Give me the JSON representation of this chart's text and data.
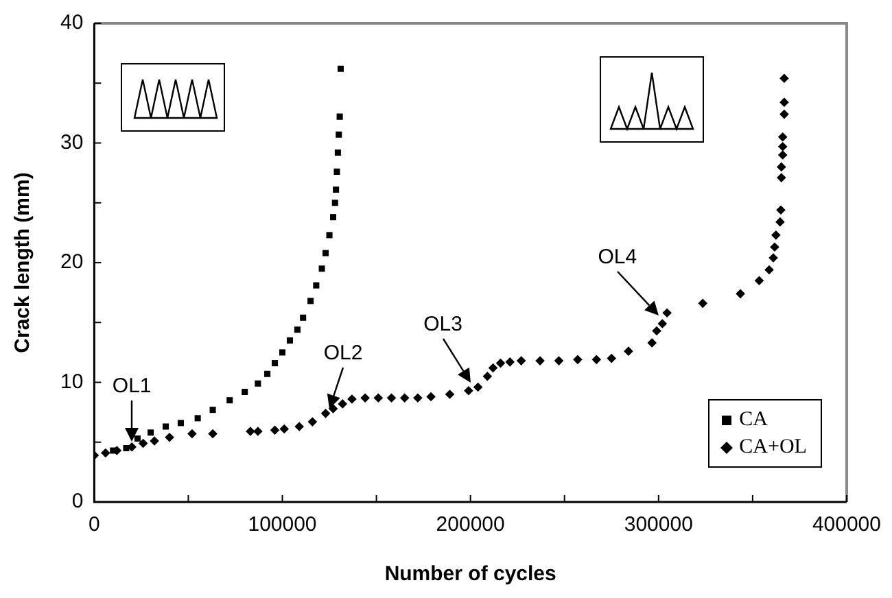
{
  "chart_data": {
    "type": "scatter",
    "xlabel": "Number of cycles",
    "ylabel": "Crack length (mm)",
    "xlim": [
      0,
      400000
    ],
    "ylim": [
      0,
      40
    ],
    "xticks": [
      0,
      {
        "value": 50000,
        "label": null
      },
      100000,
      {
        "value": 150000,
        "label": null
      },
      200000,
      {
        "value": 250000,
        "label": null
      },
      300000,
      {
        "value": 350000,
        "label": null
      },
      400000
    ],
    "yticks": [
      0,
      {
        "value": 5,
        "label": null
      },
      10,
      {
        "value": 15,
        "label": null
      },
      20,
      {
        "value": 25,
        "label": null
      },
      30,
      {
        "value": 35,
        "label": null
      },
      40
    ],
    "grid": false,
    "legend": "bottom right",
    "series": [
      {
        "name": "CA",
        "color": "#000000",
        "marker": "square",
        "x": [
          10000,
          17000,
          23000,
          30000,
          38000,
          46000,
          55000,
          63000,
          72000,
          80000,
          87000,
          92000,
          96000,
          100000,
          104000,
          108000,
          111000,
          115000,
          118000,
          121000,
          123000,
          125000,
          127000,
          128000,
          128500,
          129000,
          129500,
          130000,
          130500,
          131000
        ],
        "values": [
          4.3,
          4.5,
          5.3,
          5.8,
          6.3,
          6.6,
          7.0,
          7.7,
          8.5,
          9.2,
          9.9,
          10.7,
          11.6,
          12.5,
          13.5,
          14.4,
          15.4,
          16.8,
          18.1,
          19.5,
          20.8,
          22.3,
          23.8,
          25.0,
          26.1,
          27.6,
          29.2,
          30.7,
          32.2,
          36.2
        ]
      },
      {
        "name": "CA+OL",
        "color": "#000000",
        "marker": "diamond",
        "x": [
          0,
          6000,
          12000,
          20000,
          26000,
          32000,
          40000,
          52000,
          63000,
          83000,
          87000,
          96000,
          101000,
          109000,
          116000,
          123000,
          127000,
          132000,
          137000,
          144000,
          151000,
          158000,
          165000,
          172000,
          179000,
          189000,
          199000,
          204000,
          209000,
          212000,
          216000,
          221000,
          227000,
          237000,
          247000,
          257000,
          267000,
          275000,
          284000,
          296500,
          299000,
          302000,
          304500,
          323500,
          343500,
          353500,
          358800,
          361000,
          361700,
          362400,
          364600,
          365000,
          365300,
          365300,
          366000,
          366000,
          366000,
          366800,
          366800,
          366800
        ],
        "values": [
          3.9,
          4.1,
          4.3,
          4.6,
          4.9,
          5.1,
          5.4,
          5.7,
          5.7,
          5.9,
          5.9,
          6.0,
          6.1,
          6.3,
          6.7,
          7.4,
          7.8,
          8.2,
          8.6,
          8.7,
          8.7,
          8.7,
          8.7,
          8.7,
          8.8,
          9.0,
          9.3,
          9.6,
          10.5,
          11.2,
          11.6,
          11.7,
          11.8,
          11.8,
          11.8,
          11.9,
          11.9,
          12.0,
          12.6,
          13.3,
          14.3,
          14.9,
          15.8,
          16.6,
          17.4,
          18.5,
          19.4,
          20.4,
          21.3,
          22.3,
          23.4,
          24.4,
          27.1,
          28.0,
          29.0,
          29.7,
          30.5,
          32.4,
          33.4,
          35.4
        ]
      }
    ],
    "annotations": [
      {
        "text": "OL1",
        "x": 20000,
        "y": 5.1
      },
      {
        "text": "OL2",
        "x": 125000,
        "y": 7.8
      },
      {
        "text": "OL3",
        "x": 200000,
        "y": 10.0
      },
      {
        "text": "OL4",
        "x": 300000,
        "y": 15.6
      }
    ]
  }
}
